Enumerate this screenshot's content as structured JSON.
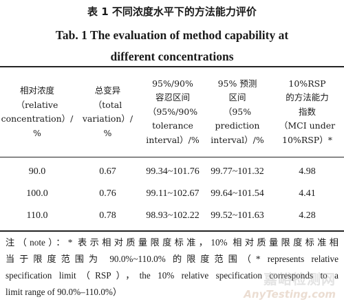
{
  "title": {
    "cn": "表 1   不同浓度水平下的方法能力评价",
    "en_line1": "Tab. 1    The evaluation of method capability at",
    "en_line2": "different concentrations"
  },
  "table": {
    "headers": [
      [
        "相对浓度",
        "（relative",
        "concentration）/",
        "%"
      ],
      [
        "总变异",
        "（total",
        "variation）/",
        "%"
      ],
      [
        "95%/90%",
        "容忍区间",
        "（95%/90%",
        "tolerance",
        "interval）/%"
      ],
      [
        "95% 预测",
        "区间",
        "（95%",
        "prediction",
        "interval）/%"
      ],
      [
        "10%RSP",
        "的方法能力",
        "指数",
        "（MCI under",
        "10%RSP）*"
      ]
    ],
    "rows": [
      [
        "90.0",
        "0.67",
        "99.34~101.76",
        "99.77~101.32",
        "4.98"
      ],
      [
        "100.0",
        "0.76",
        "99.11~102.67",
        "99.64~101.54",
        "4.41"
      ],
      [
        "110.0",
        "0.78",
        "98.93~102.22",
        "99.52~101.63",
        "4.28"
      ]
    ]
  },
  "note": {
    "line1": "注（note）：* 表示相对质量限度标准，10% 相对质量限度标准相",
    "line2": "当于限度范围为 90.0%~110.0% 的限度范围（* represents relative",
    "line3": "specification limit（RSP），the 10% relative specification corresponds to a",
    "line4": "limit range of 90.0%–110.0%）"
  },
  "watermark": {
    "cn": "嘉峪检测网",
    "en": "AnyTesting.com"
  }
}
